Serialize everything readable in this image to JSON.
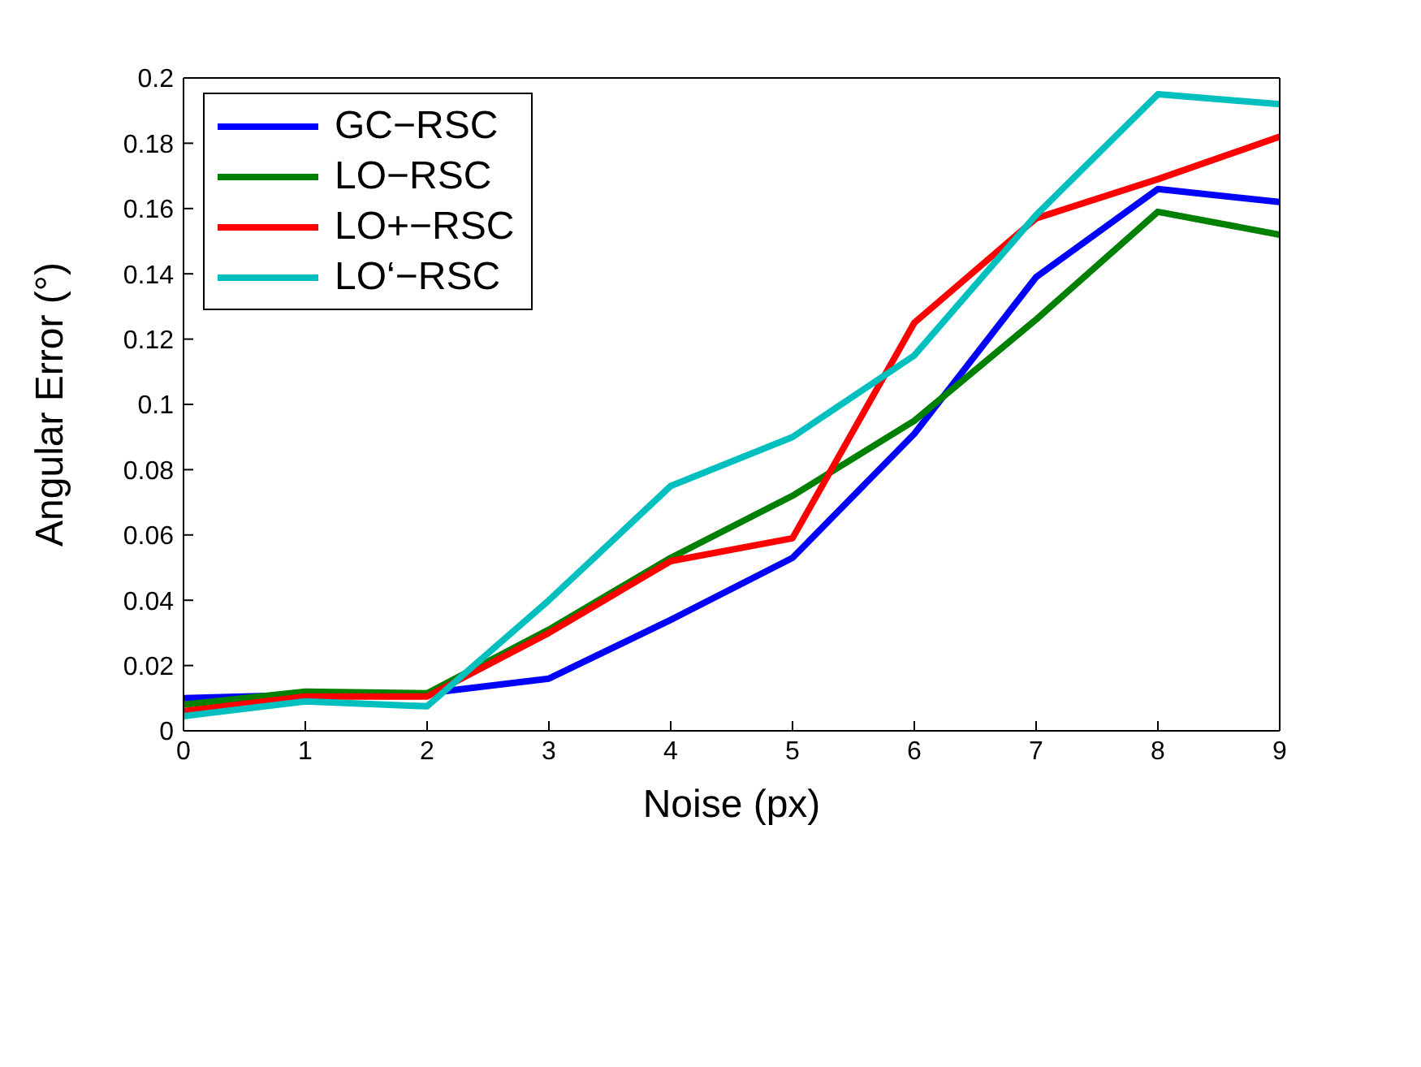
{
  "chart_data": {
    "type": "line",
    "xlabel": "Noise (px)",
    "ylabel": "Angular Error (°)",
    "x": [
      0,
      1,
      2,
      3,
      4,
      5,
      6,
      7,
      8,
      9
    ],
    "series": [
      {
        "name": "GC−RSC",
        "color": "#0000ff",
        "values": [
          0.01,
          0.011,
          0.0115,
          0.016,
          0.034,
          0.053,
          0.091,
          0.139,
          0.166,
          0.162
        ]
      },
      {
        "name": "LO−RSC",
        "color": "#008000",
        "values": [
          0.008,
          0.012,
          0.0115,
          0.031,
          0.053,
          0.072,
          0.095,
          0.126,
          0.159,
          0.152
        ]
      },
      {
        "name": "LO+−RSC",
        "color": "#ff0000",
        "values": [
          0.006,
          0.0105,
          0.0105,
          0.03,
          0.052,
          0.059,
          0.125,
          0.157,
          0.169,
          0.182
        ]
      },
      {
        "name": "LO‘−RSC",
        "color": "#00bfbf",
        "values": [
          0.0045,
          0.009,
          0.0075,
          0.04,
          0.075,
          0.09,
          0.115,
          0.158,
          0.195,
          0.192
        ]
      }
    ],
    "xlim": [
      0,
      9
    ],
    "xticks": [
      0,
      1,
      2,
      3,
      4,
      5,
      6,
      7,
      8,
      9
    ],
    "ylim": [
      0,
      0.2
    ],
    "yticks": [
      0,
      0.02,
      0.04,
      0.06,
      0.08,
      0.1,
      0.12,
      0.14,
      0.16,
      0.18,
      0.2
    ],
    "grid": false,
    "legend": "top left",
    "marker": "none",
    "line_style": "solid"
  }
}
